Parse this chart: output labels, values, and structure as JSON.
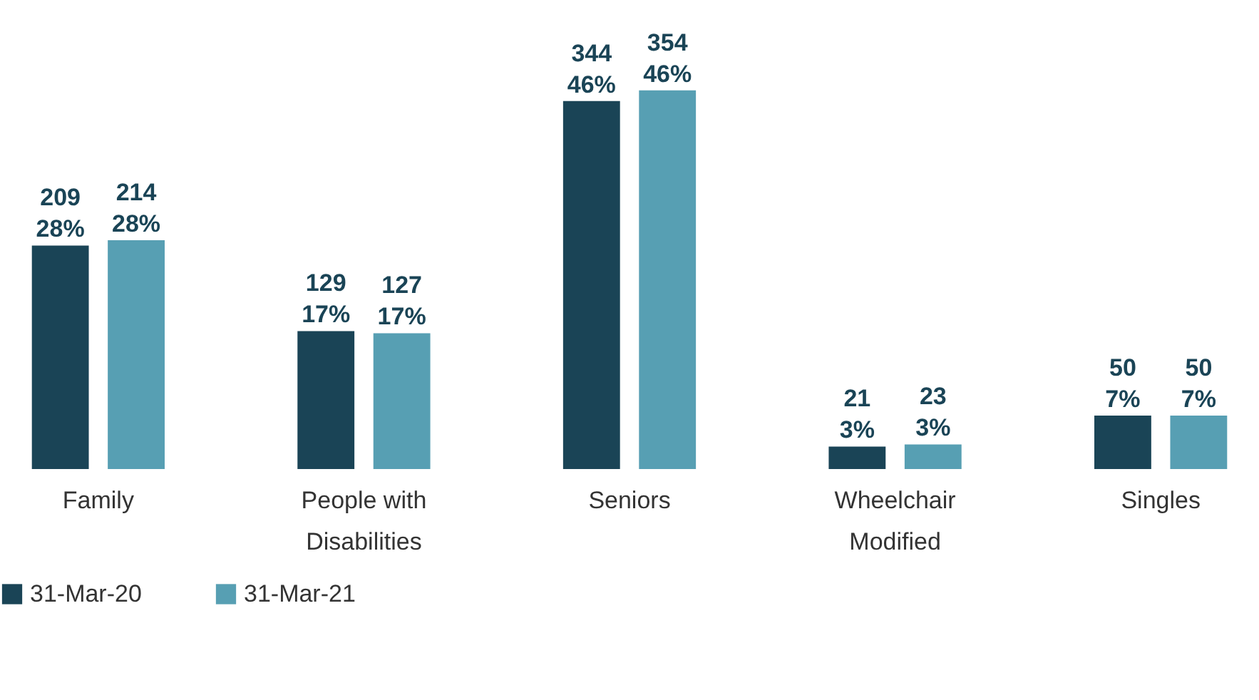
{
  "chart_data": {
    "type": "bar",
    "categories": [
      "Family",
      "People with Disabilities",
      "Seniors",
      "Wheelchair Modified",
      "Singles"
    ],
    "series": [
      {
        "name": "31-Mar-20",
        "color": "#1a4456",
        "values": [
          209,
          129,
          344,
          21,
          50
        ],
        "value_labels": [
          "209\n28%",
          "129\n17%",
          "344\n46%",
          "21\n3%",
          "50\n7%"
        ]
      },
      {
        "name": "31-Mar-21",
        "color": "#579fb3",
        "values": [
          214,
          127,
          354,
          23,
          50
        ],
        "value_labels": [
          "214\n28%",
          "127\n17%",
          "354\n46%",
          "23\n3%",
          "50\n7%"
        ]
      }
    ],
    "legend": "bottom",
    "grid": false
  }
}
